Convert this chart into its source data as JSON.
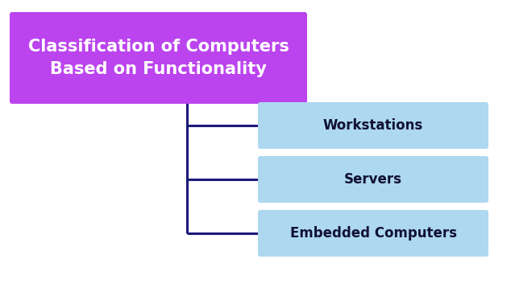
{
  "title_text": "Classification of Computers\nBased on Functionality",
  "title_box_color": "#BB44EE",
  "title_text_color": "#FFFFFF",
  "items": [
    "Workstations",
    "Servers",
    "Embedded Computers"
  ],
  "item_box_color": "#ADD8F0",
  "item_text_color": "#111133",
  "line_color": "#1A1A7A",
  "line_width": 2.2,
  "background_color": "#FFFFFF",
  "item_fontsize": 12,
  "title_fontsize": 15,
  "fig_width": 6.34,
  "fig_height": 3.58,
  "dpi": 100
}
